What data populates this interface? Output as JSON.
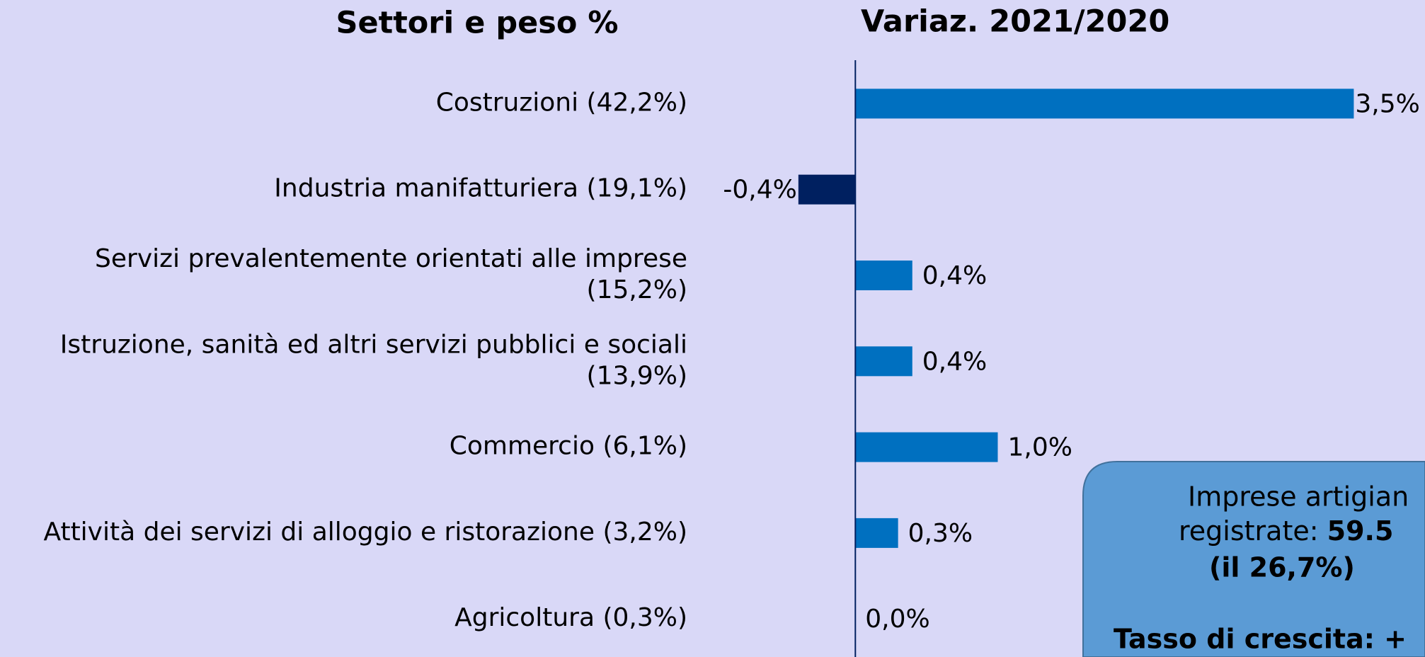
{
  "chart_data": {
    "type": "hbar",
    "titles": [
      "Settori e peso %",
      "Variaz. 2021/2020"
    ],
    "categories": [
      "Costruzioni (42,2%)",
      "Industria manifatturiera (19,1%)",
      "Servizi prevalentemente orientati alle imprese\n(15,2%)",
      "Istruzione, sanità ed altri servizi pubblici e sociali\n(13,9%)",
      "Commercio (6,1%)",
      "Attività dei servizi di alloggio e ristorazione (3,2%)",
      "Agricoltura (0,3%)"
    ],
    "values": [
      3.5,
      -0.4,
      0.4,
      0.4,
      1.0,
      0.3,
      0.0
    ],
    "value_labels": [
      "3,5%",
      "-0,4%",
      "0,4%",
      "0,4%",
      "1,0%",
      "0,3%",
      "0,0%"
    ],
    "color": "#0070c0",
    "negative_color": "#002060",
    "xlim": [
      -1.1,
      4
    ],
    "box": {
      "line1": "Imprese artigian",
      "line2_a": "registrate: ",
      "line2_b": "59.5",
      "line3": "(il 26,7%)",
      "line4": "Tasso di crescita: +"
    }
  }
}
